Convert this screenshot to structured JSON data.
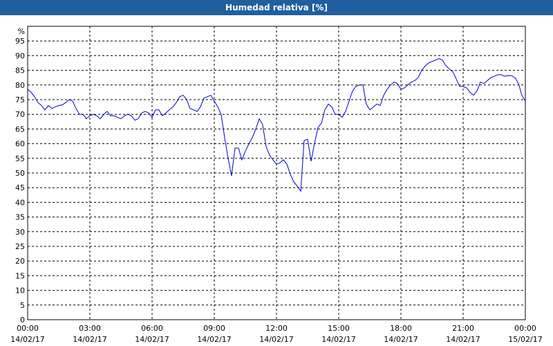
{
  "header": {
    "title": "Humedad relativa [%]"
  },
  "chart_data": {
    "type": "line",
    "title": "Humedad relativa [%]",
    "ylabel": "%",
    "xlabel": "",
    "ylim": [
      0,
      100
    ],
    "xlim_hours": [
      0,
      24
    ],
    "grid": true,
    "line_color": "#0000cc",
    "y_ticks": [
      0,
      5,
      10,
      15,
      20,
      25,
      30,
      35,
      40,
      45,
      50,
      55,
      60,
      65,
      70,
      75,
      80,
      85,
      90,
      95
    ],
    "x_ticks": [
      {
        "time": "00:00",
        "date": "14/02/17"
      },
      {
        "time": "03:00",
        "date": "14/02/17"
      },
      {
        "time": "06:00",
        "date": "14/02/17"
      },
      {
        "time": "09:00",
        "date": "14/02/17"
      },
      {
        "time": "12:00",
        "date": "14/02/17"
      },
      {
        "time": "15:00",
        "date": "14/02/17"
      },
      {
        "time": "18:00",
        "date": "14/02/17"
      },
      {
        "time": "21:00",
        "date": "14/02/17"
      },
      {
        "time": "00:00",
        "date": "15/02/17"
      }
    ],
    "series": [
      {
        "points": [
          [
            0.0,
            78.5
          ],
          [
            0.17,
            77.5
          ],
          [
            0.33,
            76
          ],
          [
            0.5,
            74
          ],
          [
            0.67,
            73
          ],
          [
            0.83,
            71.5
          ],
          [
            1.0,
            73
          ],
          [
            1.17,
            72
          ],
          [
            1.33,
            72.5
          ],
          [
            1.5,
            73
          ],
          [
            1.67,
            73.2
          ],
          [
            1.83,
            74
          ],
          [
            2.0,
            75
          ],
          [
            2.17,
            74.5
          ],
          [
            2.33,
            72
          ],
          [
            2.5,
            70
          ],
          [
            2.67,
            70
          ],
          [
            2.83,
            68.5
          ],
          [
            3.0,
            69.5
          ],
          [
            3.17,
            70
          ],
          [
            3.33,
            69.5
          ],
          [
            3.5,
            68.5
          ],
          [
            3.67,
            70
          ],
          [
            3.83,
            71
          ],
          [
            4.0,
            69.5
          ],
          [
            4.17,
            69.5
          ],
          [
            4.33,
            69
          ],
          [
            4.5,
            68.5
          ],
          [
            4.67,
            69.5
          ],
          [
            4.83,
            70
          ],
          [
            5.0,
            69.5
          ],
          [
            5.17,
            68
          ],
          [
            5.33,
            68.5
          ],
          [
            5.5,
            70.5
          ],
          [
            5.67,
            71
          ],
          [
            5.83,
            70.5
          ],
          [
            6.0,
            69
          ],
          [
            6.17,
            71.5
          ],
          [
            6.33,
            71.5
          ],
          [
            6.5,
            69.5
          ],
          [
            6.67,
            70.5
          ],
          [
            6.83,
            71.5
          ],
          [
            7.0,
            72.5
          ],
          [
            7.17,
            74
          ],
          [
            7.33,
            76
          ],
          [
            7.5,
            76.5
          ],
          [
            7.67,
            75
          ],
          [
            7.83,
            72
          ],
          [
            8.0,
            71.5
          ],
          [
            8.17,
            71
          ],
          [
            8.33,
            72.5
          ],
          [
            8.5,
            75.5
          ],
          [
            8.67,
            76
          ],
          [
            8.83,
            76.5
          ],
          [
            9.0,
            74.5
          ],
          [
            9.17,
            72.5
          ],
          [
            9.33,
            70
          ],
          [
            9.5,
            62
          ],
          [
            9.67,
            55
          ],
          [
            9.83,
            49
          ],
          [
            10.0,
            58.5
          ],
          [
            10.17,
            58.5
          ],
          [
            10.33,
            54.5
          ],
          [
            10.5,
            57.5
          ],
          [
            10.67,
            60
          ],
          [
            10.83,
            62
          ],
          [
            11.0,
            65
          ],
          [
            11.17,
            68.5
          ],
          [
            11.33,
            66.5
          ],
          [
            11.5,
            59
          ],
          [
            11.67,
            56
          ],
          [
            11.83,
            54.5
          ],
          [
            12.0,
            53
          ],
          [
            12.17,
            53.5
          ],
          [
            12.33,
            54.5
          ],
          [
            12.5,
            53
          ],
          [
            12.67,
            49.5
          ],
          [
            12.83,
            47
          ],
          [
            13.0,
            45.5
          ],
          [
            13.17,
            43.8
          ],
          [
            13.33,
            61
          ],
          [
            13.5,
            61.5
          ],
          [
            13.67,
            54
          ],
          [
            13.83,
            60
          ],
          [
            14.0,
            65.5
          ],
          [
            14.17,
            67
          ],
          [
            14.33,
            71.5
          ],
          [
            14.5,
            73.5
          ],
          [
            14.67,
            72.5
          ],
          [
            14.83,
            70
          ],
          [
            15.0,
            70
          ],
          [
            15.17,
            69
          ],
          [
            15.33,
            71
          ],
          [
            15.5,
            74.5
          ],
          [
            15.67,
            78
          ],
          [
            15.83,
            79.5
          ],
          [
            16.0,
            80
          ],
          [
            16.17,
            80
          ],
          [
            16.33,
            73.5
          ],
          [
            16.5,
            71.5
          ],
          [
            16.67,
            72.5
          ],
          [
            16.83,
            73.5
          ],
          [
            17.0,
            73
          ],
          [
            17.17,
            76.5
          ],
          [
            17.33,
            78.5
          ],
          [
            17.5,
            80
          ],
          [
            17.67,
            81
          ],
          [
            17.83,
            80.5
          ],
          [
            18.0,
            78.5
          ],
          [
            18.17,
            79
          ],
          [
            18.33,
            80
          ],
          [
            18.5,
            81
          ],
          [
            18.67,
            81.5
          ],
          [
            18.83,
            82.5
          ],
          [
            19.0,
            85
          ],
          [
            19.17,
            86.5
          ],
          [
            19.33,
            87.5
          ],
          [
            19.5,
            88
          ],
          [
            19.67,
            88.5
          ],
          [
            19.83,
            89
          ],
          [
            20.0,
            88.5
          ],
          [
            20.17,
            86.5
          ],
          [
            20.33,
            85.5
          ],
          [
            20.5,
            84.5
          ],
          [
            20.67,
            82
          ],
          [
            20.83,
            79.5
          ],
          [
            21.0,
            79.5
          ],
          [
            21.17,
            79
          ],
          [
            21.33,
            77.5
          ],
          [
            21.5,
            76.5
          ],
          [
            21.67,
            78
          ],
          [
            21.83,
            81
          ],
          [
            22.0,
            80.5
          ],
          [
            22.17,
            81.5
          ],
          [
            22.33,
            82.5
          ],
          [
            22.5,
            83
          ],
          [
            22.67,
            83.5
          ],
          [
            22.83,
            83.5
          ],
          [
            23.0,
            83
          ],
          [
            23.17,
            83.2
          ],
          [
            23.33,
            83.2
          ],
          [
            23.5,
            82.5
          ],
          [
            23.67,
            80.5
          ],
          [
            23.83,
            76.5
          ],
          [
            24.0,
            74.5
          ]
        ]
      }
    ]
  }
}
